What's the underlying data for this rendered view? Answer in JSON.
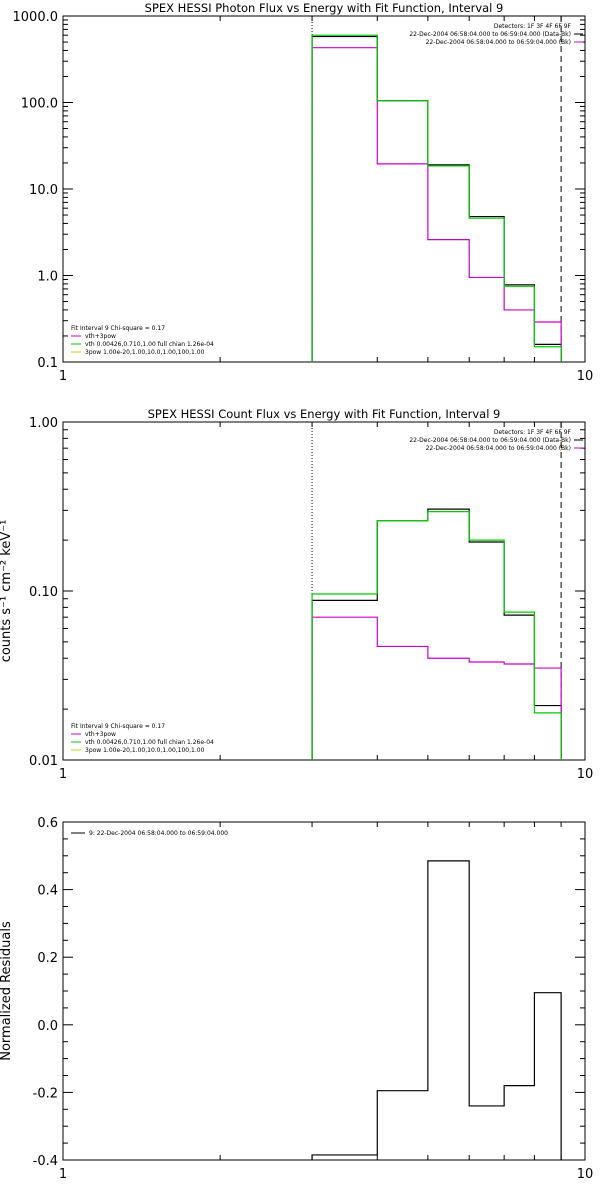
{
  "chart_data": [
    {
      "type": "line",
      "title": "SPEX HESSI Photon Flux vs Energy with Fit Function, Interval 9",
      "ylabel": "",
      "xscale": "log",
      "yscale": "log",
      "xlim": [
        1,
        10
      ],
      "ylim": [
        0.1,
        1000
      ],
      "x_ticks": [
        "1",
        "10"
      ],
      "y_ticks": [
        "0.1",
        "1.0",
        "10.0",
        "100.0",
        "1000.0"
      ],
      "legend_top": [
        "Detectors: 1F 3F 4F 6F 9F",
        "22-Dec-2004 06:58:04.000 to 06:59:04.000 (Data-Bk)",
        "22-Dec-2004 06:58:04.000 to 06:59:04.000 (Bk)"
      ],
      "legend_bottom": [
        "Fit Interval 9   Chi-square = 0.17",
        "vth+3pow",
        "vth 0.00426,0.710,1.00   full chian 1.26e-04",
        "3pow 1.00e-20,1.00,10.0,1.00,100,1.00"
      ],
      "vlines": [
        {
          "x": 3.0,
          "style": "dotted"
        },
        {
          "x": 9.0,
          "style": "dashed"
        }
      ],
      "bin_edges": [
        3.0,
        4.0,
        5.0,
        6.0,
        7.0,
        8.0,
        9.0
      ],
      "series": [
        {
          "name": "Data-Bk",
          "color": "#000000",
          "values": [
            580,
            105,
            19,
            4.8,
            0.78,
            0.16
          ]
        },
        {
          "name": "Bk",
          "color": "#cc00cc",
          "values": [
            430,
            19.5,
            2.6,
            0.95,
            0.4,
            0.29
          ]
        },
        {
          "name": "vth+3pow",
          "color": "#00cc00",
          "values": [
            600,
            105,
            18.5,
            4.6,
            0.75,
            0.15
          ]
        }
      ]
    },
    {
      "type": "line",
      "title": "SPEX HESSI Count Flux vs Energy with Fit Function, Interval 9",
      "ylabel": "counts s⁻¹ cm⁻² keV⁻¹",
      "xscale": "log",
      "yscale": "log",
      "xlim": [
        1,
        10
      ],
      "ylim": [
        0.01,
        1.0
      ],
      "x_ticks": [
        "1",
        "10"
      ],
      "y_ticks": [
        "0.01",
        "0.10",
        "1.00"
      ],
      "legend_top": [
        "Detectors: 1F 3F 4F 6F 9F",
        "22-Dec-2004 06:58:04.000 to 06:59:04.000 (Data-Bk)",
        "22-Dec-2004 06:58:04.000 to 06:59:04.000 (Bk)"
      ],
      "legend_bottom": [
        "Fit Interval 9   Chi-square = 0.17",
        "vth+3pow",
        "vth 0.00426,0.710,1.00   full chian 1.26e-04",
        "3pow 1.00e-20,1.00,10.0,1.00,100,1.00"
      ],
      "vlines": [
        {
          "x": 3.0,
          "style": "dotted"
        },
        {
          "x": 9.0,
          "style": "dashed"
        }
      ],
      "bin_edges": [
        3.0,
        4.0,
        5.0,
        6.0,
        7.0,
        8.0,
        9.0
      ],
      "series": [
        {
          "name": "Data-Bk",
          "color": "#000000",
          "values": [
            0.088,
            0.26,
            0.305,
            0.195,
            0.072,
            0.021
          ]
        },
        {
          "name": "Bk",
          "color": "#cc00cc",
          "values": [
            0.07,
            0.047,
            0.04,
            0.038,
            0.037,
            0.035
          ]
        },
        {
          "name": "vth+3pow",
          "color": "#00cc00",
          "values": [
            0.096,
            0.26,
            0.295,
            0.2,
            0.075,
            0.019
          ]
        }
      ]
    },
    {
      "type": "line",
      "title": "",
      "ylabel": "Normalized Residuals",
      "xscale": "log",
      "yscale": "linear",
      "xlim": [
        1,
        10
      ],
      "ylim": [
        -0.4,
        0.6
      ],
      "x_ticks": [
        "1",
        "10"
      ],
      "y_ticks": [
        "-0.4",
        "-0.2",
        "0.0",
        "0.2",
        "0.4",
        "0.6"
      ],
      "legend_top": [
        "9: 22-Dec-2004 06:58:04.000 to 06:59:04.000"
      ],
      "legend_bottom": [],
      "vlines": [],
      "bin_edges": [
        3.0,
        4.0,
        5.0,
        6.0,
        7.0,
        8.0,
        9.0
      ],
      "series": [
        {
          "name": "9: 22-Dec-2004 06:58:04.000 to 06:59:04.000",
          "color": "#000000",
          "values": [
            -0.385,
            -0.195,
            0.485,
            -0.24,
            -0.18,
            0.095
          ]
        }
      ]
    }
  ]
}
